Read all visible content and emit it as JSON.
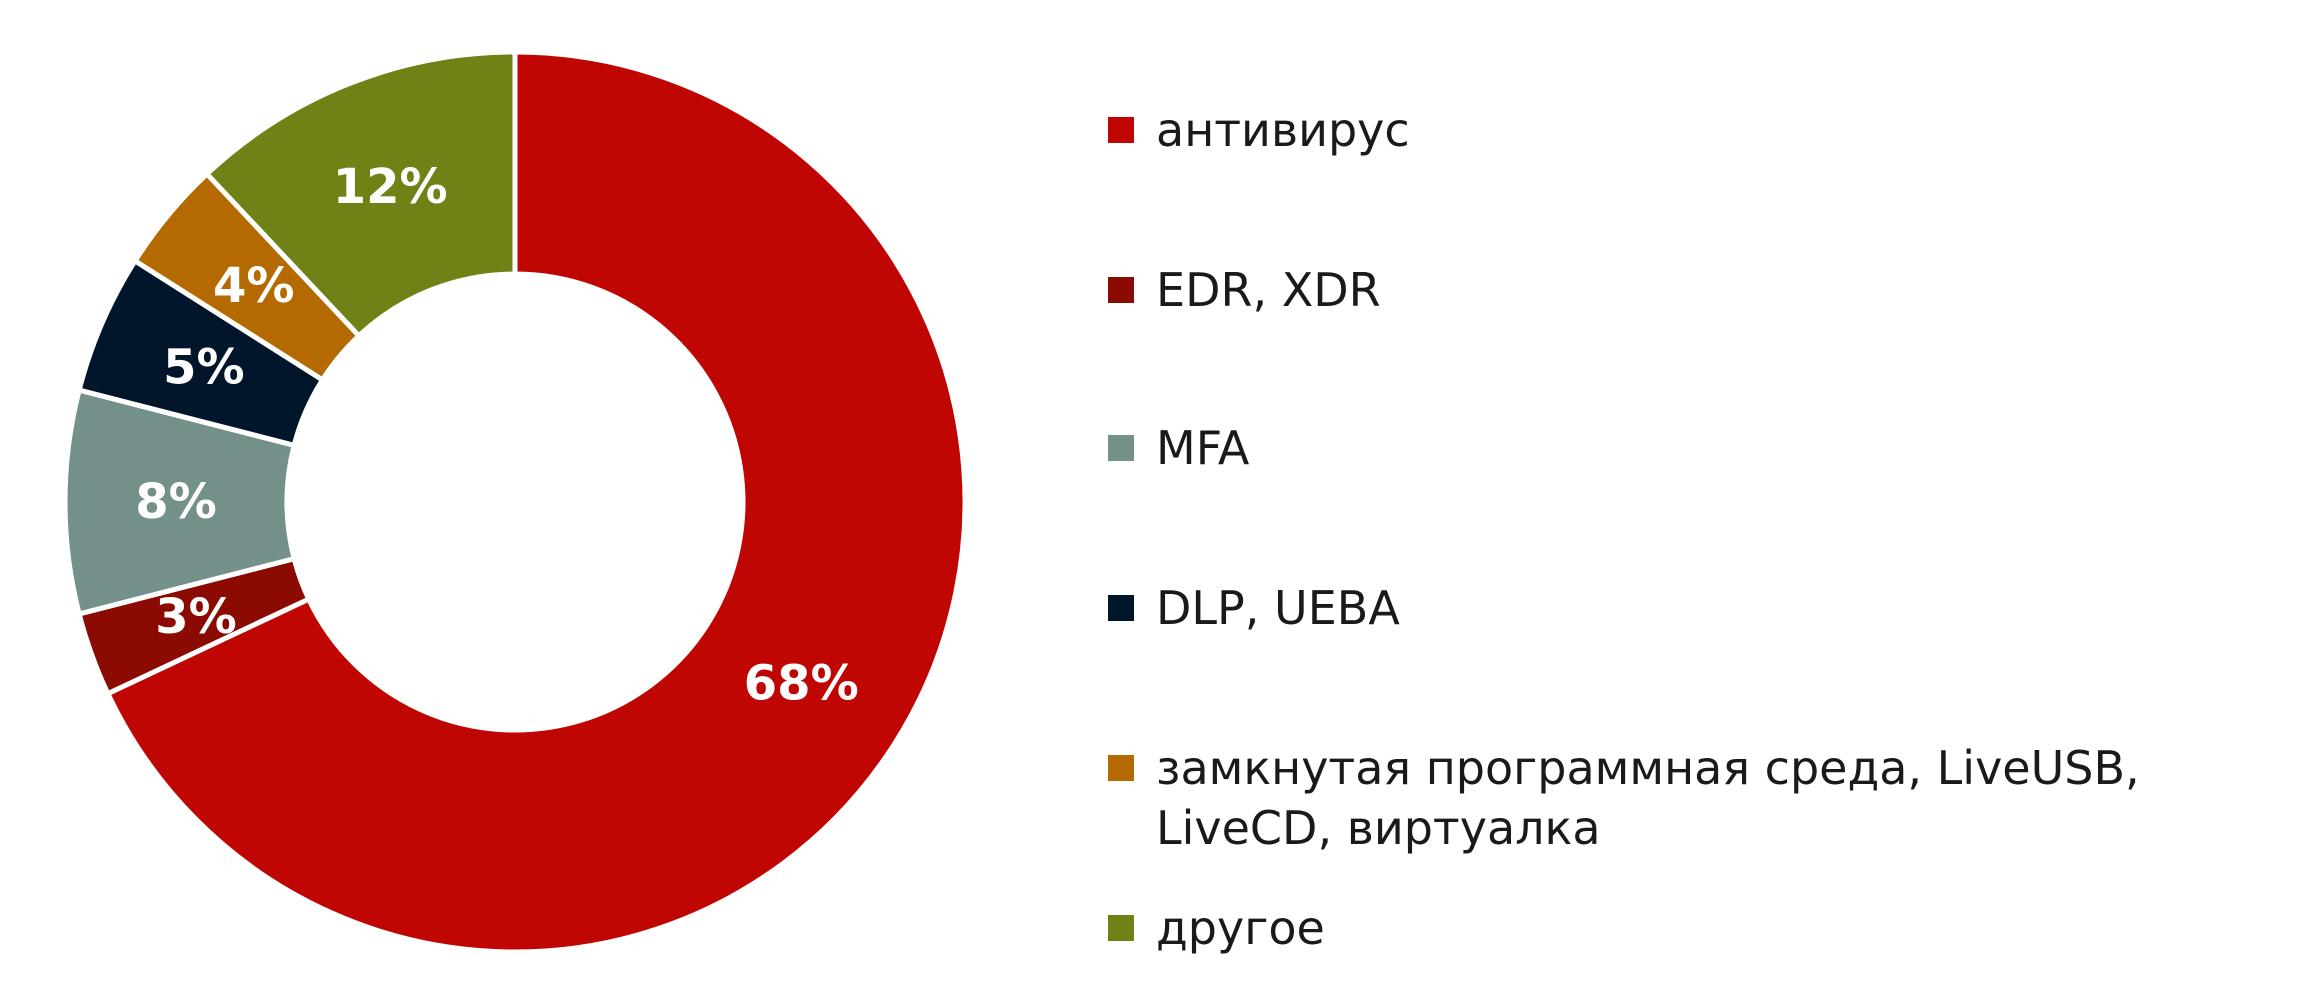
{
  "chart_data": {
    "type": "pie",
    "donut": true,
    "categories": [
      "антивирус",
      "EDR, XDR",
      "MFA",
      "DLP, UEBA",
      "замкнутая программная среда, LiveUSB, LiveCD, виртуалка",
      "другое"
    ],
    "values": [
      68,
      3,
      8,
      5,
      4,
      12
    ],
    "value_labels": [
      "68%",
      "3%",
      "8%",
      "5%",
      "4%",
      "12%"
    ],
    "colors": [
      "#bf0603",
      "#8b0a02",
      "#73918a",
      "#02162b",
      "#b46a00",
      "#6e8216"
    ],
    "legend_placement": "right",
    "start_angle_deg": 0,
    "direction": "clockwise"
  }
}
